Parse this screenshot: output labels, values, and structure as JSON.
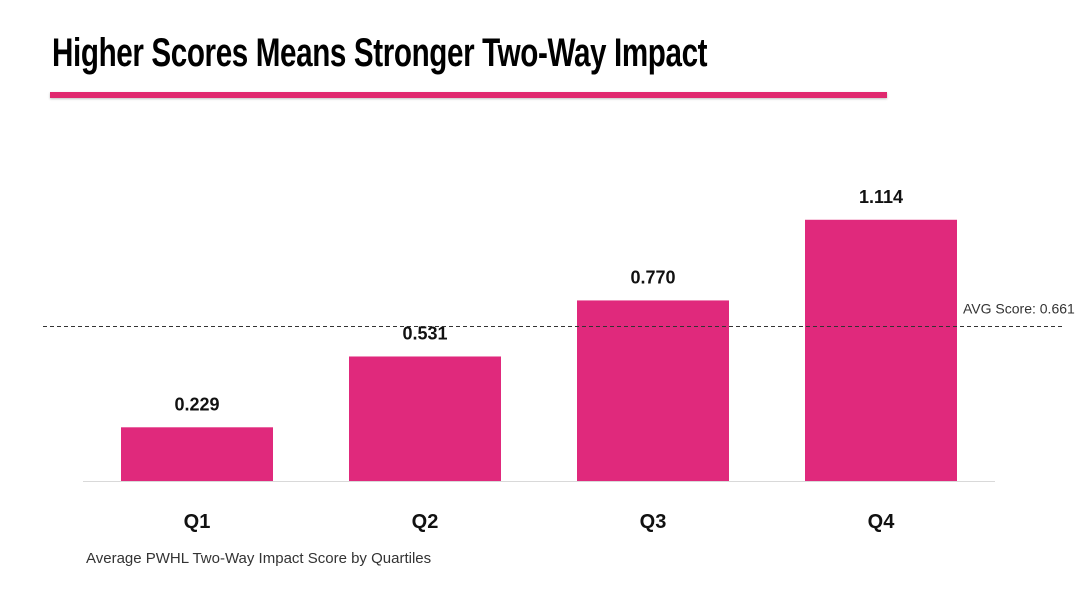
{
  "colors": {
    "accent": "#e0296f",
    "bar": "#e0297c",
    "text": "#111111",
    "axis": "#d9d9d9",
    "avg_line": "#333333"
  },
  "chart_data": {
    "type": "bar",
    "title": "Higher Scores Means Stronger Two-Way Impact",
    "caption": "Average PWHL Two-Way Impact Score by Quartiles",
    "categories": [
      "Q1",
      "Q2",
      "Q3",
      "Q4"
    ],
    "values": [
      0.229,
      0.531,
      0.77,
      1.114
    ],
    "value_labels": [
      "0.229",
      "0.531",
      "0.770",
      "1.114"
    ],
    "reference_line": {
      "value": 0.661,
      "label": "AVG Score: 0.661",
      "style": "dashed"
    },
    "xlabel": "",
    "ylabel": "",
    "ylim": [
      0,
      1.2
    ],
    "grid": false,
    "legend": "none"
  }
}
